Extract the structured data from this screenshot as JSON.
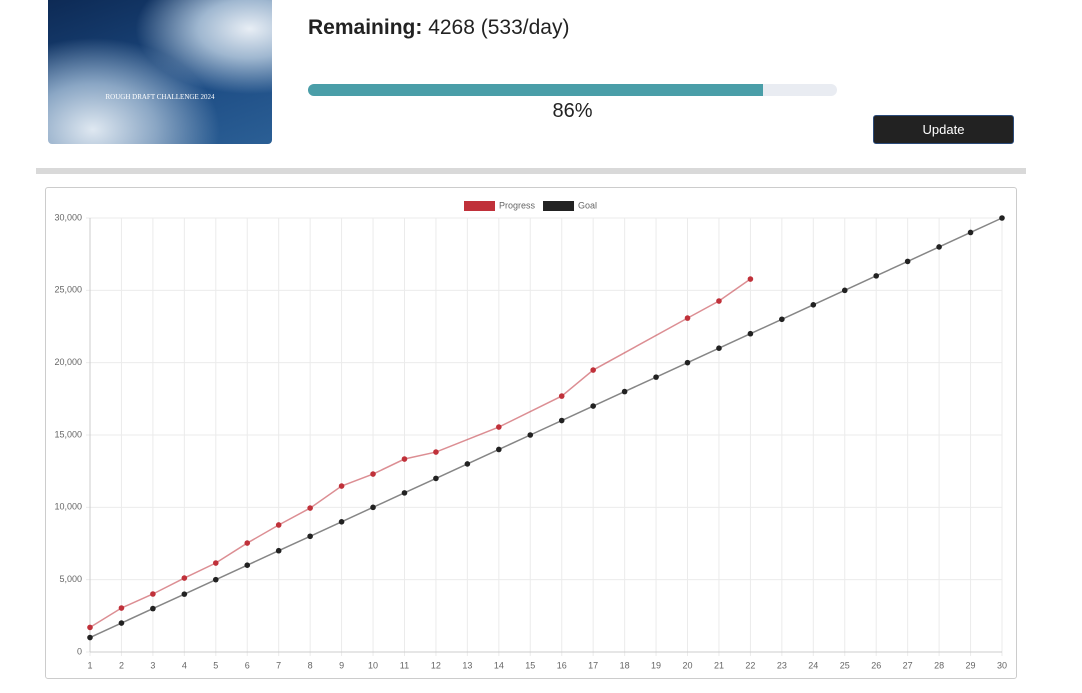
{
  "cover_text": "ROUGH DRAFT CHALLENGE 2024",
  "stats": {
    "remaining_label": "Remaining:",
    "remaining_text": "4268 (533/day)",
    "progress": {
      "value": 86,
      "label": "86%"
    }
  },
  "button": "Update",
  "chart_data": {
    "type": "line",
    "xlim": [
      1,
      30
    ],
    "xticks": [
      1,
      2,
      3,
      4,
      5,
      6,
      7,
      8,
      9,
      10,
      11,
      12,
      13,
      14,
      15,
      16,
      17,
      18,
      19,
      20,
      21,
      22,
      23,
      24,
      25,
      26,
      27,
      28,
      29,
      30
    ],
    "ylim": [
      0,
      30000
    ],
    "yticks": [
      0,
      {
        "value": 5000,
        "label": "5,000"
      },
      {
        "value": 10000,
        "label": "10,000"
      },
      {
        "value": 15000,
        "label": "15,000"
      },
      {
        "value": 20000,
        "label": "20,000"
      },
      {
        "value": 25000,
        "label": "25,000"
      },
      {
        "value": 30000,
        "label": "30,000"
      }
    ],
    "grid": true,
    "legend": "top",
    "series": [
      {
        "name": "Progress",
        "color": "#c0313a",
        "x": [
          1,
          2,
          3,
          4,
          5,
          6,
          7,
          8,
          9,
          10,
          11,
          12,
          14,
          16,
          17,
          20,
          21,
          22
        ],
        "values": [
          1700,
          3040,
          4010,
          5110,
          6150,
          7530,
          8780,
          9950,
          11470,
          12300,
          13340,
          13820,
          15550,
          17690,
          19490,
          23080,
          24260,
          25780
        ]
      },
      {
        "name": "Goal",
        "color": "#222222",
        "x": [
          1,
          2,
          3,
          4,
          5,
          6,
          7,
          8,
          9,
          10,
          11,
          12,
          13,
          14,
          15,
          16,
          17,
          18,
          19,
          20,
          21,
          22,
          23,
          24,
          25,
          26,
          27,
          28,
          29,
          30
        ],
        "values": [
          1000,
          2000,
          3000,
          4000,
          5000,
          6000,
          7000,
          8000,
          9000,
          10000,
          11000,
          12000,
          13000,
          14000,
          15000,
          16000,
          17000,
          18000,
          19000,
          20000,
          21000,
          22000,
          23000,
          24000,
          25000,
          26000,
          27000,
          28000,
          29000,
          30000
        ]
      }
    ]
  }
}
